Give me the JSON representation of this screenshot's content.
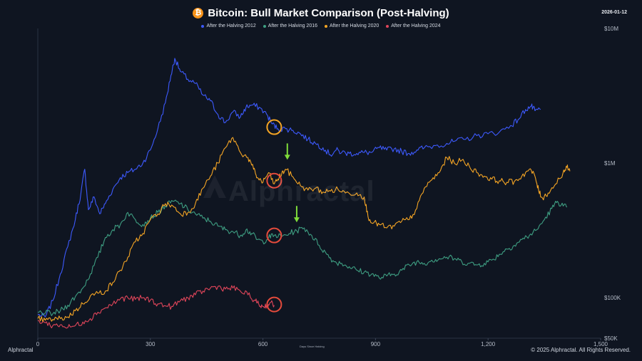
{
  "header": {
    "title": "Bitcoin: Bull Market Comparison (Post-Halving)",
    "date": "2026-01-12",
    "icon": "bitcoin-icon"
  },
  "footer": {
    "brand": "Alphractal",
    "copyright": "© 2025 Alphractal. All Rights Reserved.",
    "watermark": "Alphractal"
  },
  "chart_data": {
    "type": "line",
    "title": "Bitcoin: Bull Market Comparison (Post-Halving)",
    "xlabel": "Days Since Halving",
    "ylabel": "",
    "y_scale": "log",
    "xlim": [
      0,
      1500
    ],
    "ylim": [
      50000,
      10000000
    ],
    "x_ticks": [
      {
        "value": 0,
        "label": "0"
      },
      {
        "value": 300,
        "label": "300"
      },
      {
        "value": 600,
        "label": "600"
      },
      {
        "value": 900,
        "label": "900"
      },
      {
        "value": 1200,
        "label": "1,200"
      },
      {
        "value": 1500,
        "label": "1,500"
      }
    ],
    "y_ticks": [
      {
        "value": 10000000,
        "label": "$10M"
      },
      {
        "value": 1000000,
        "label": "$1M"
      },
      {
        "value": 100000,
        "label": "$100K"
      },
      {
        "value": 50000,
        "label": "$50K"
      }
    ],
    "grid": false,
    "legend_position": "top-center",
    "series": [
      {
        "name": "After the Halving 2012",
        "color": "#3d5afe",
        "points": [
          [
            0,
            75000
          ],
          [
            20,
            72000
          ],
          [
            40,
            95000
          ],
          [
            60,
            150000
          ],
          [
            80,
            240000
          ],
          [
            100,
            380000
          ],
          [
            115,
            600000
          ],
          [
            125,
            900000
          ],
          [
            135,
            450000
          ],
          [
            150,
            560000
          ],
          [
            165,
            420000
          ],
          [
            180,
            500000
          ],
          [
            200,
            640000
          ],
          [
            220,
            780000
          ],
          [
            240,
            850000
          ],
          [
            260,
            900000
          ],
          [
            280,
            1000000
          ],
          [
            300,
            1250000
          ],
          [
            320,
            1800000
          ],
          [
            340,
            2800000
          ],
          [
            355,
            4500000
          ],
          [
            365,
            6000000
          ],
          [
            380,
            4800000
          ],
          [
            400,
            4200000
          ],
          [
            420,
            3900000
          ],
          [
            440,
            3200000
          ],
          [
            460,
            2900000
          ],
          [
            480,
            2300000
          ],
          [
            500,
            2000000
          ],
          [
            520,
            2400000
          ],
          [
            540,
            2200000
          ],
          [
            555,
            2600000
          ],
          [
            570,
            2700000
          ],
          [
            590,
            2600000
          ],
          [
            610,
            2300000
          ],
          [
            625,
            1950000
          ],
          [
            640,
            1800000
          ],
          [
            660,
            1800000
          ],
          [
            680,
            1750000
          ],
          [
            700,
            1650000
          ],
          [
            720,
            1500000
          ],
          [
            740,
            1400000
          ],
          [
            760,
            1300000
          ],
          [
            780,
            1150000
          ],
          [
            795,
            1250000
          ],
          [
            810,
            1200000
          ],
          [
            830,
            1180000
          ],
          [
            850,
            1180000
          ],
          [
            870,
            1200000
          ],
          [
            890,
            1200000
          ],
          [
            910,
            1300000
          ],
          [
            930,
            1250000
          ],
          [
            950,
            1280000
          ],
          [
            970,
            1220000
          ],
          [
            990,
            1180000
          ],
          [
            1010,
            1250000
          ],
          [
            1030,
            1300000
          ],
          [
            1060,
            1350000
          ],
          [
            1090,
            1400000
          ],
          [
            1110,
            1450000
          ],
          [
            1140,
            1500000
          ],
          [
            1170,
            1600000
          ],
          [
            1200,
            1650000
          ],
          [
            1230,
            1700000
          ],
          [
            1260,
            1900000
          ],
          [
            1280,
            2100000
          ],
          [
            1300,
            2500000
          ],
          [
            1315,
            2650000
          ],
          [
            1325,
            2450000
          ],
          [
            1340,
            2500000
          ]
        ]
      },
      {
        "name": "After the Halving 2016",
        "color": "#3e9e82",
        "points": [
          [
            0,
            78000
          ],
          [
            20,
            77000
          ],
          [
            40,
            76000
          ],
          [
            60,
            80000
          ],
          [
            80,
            88000
          ],
          [
            100,
            102000
          ],
          [
            120,
            118000
          ],
          [
            140,
            150000
          ],
          [
            160,
            200000
          ],
          [
            180,
            280000
          ],
          [
            200,
            320000
          ],
          [
            220,
            350000
          ],
          [
            240,
            430000
          ],
          [
            260,
            380000
          ],
          [
            280,
            350000
          ],
          [
            300,
            390000
          ],
          [
            320,
            430000
          ],
          [
            340,
            480000
          ],
          [
            360,
            520000
          ],
          [
            380,
            500000
          ],
          [
            400,
            450000
          ],
          [
            420,
            420000
          ],
          [
            440,
            390000
          ],
          [
            460,
            370000
          ],
          [
            480,
            340000
          ],
          [
            500,
            320000
          ],
          [
            520,
            310000
          ],
          [
            540,
            290000
          ],
          [
            555,
            320000
          ],
          [
            570,
            300000
          ],
          [
            585,
            270000
          ],
          [
            600,
            260000
          ],
          [
            615,
            280000
          ],
          [
            630,
            290000
          ],
          [
            650,
            285000
          ],
          [
            670,
            300000
          ],
          [
            690,
            315000
          ],
          [
            710,
            330000
          ],
          [
            730,
            290000
          ],
          [
            750,
            245000
          ],
          [
            770,
            210000
          ],
          [
            790,
            185000
          ],
          [
            810,
            180000
          ],
          [
            830,
            170000
          ],
          [
            850,
            160000
          ],
          [
            870,
            155000
          ],
          [
            890,
            150000
          ],
          [
            910,
            140000
          ],
          [
            930,
            145000
          ],
          [
            950,
            150000
          ],
          [
            970,
            160000
          ],
          [
            990,
            175000
          ],
          [
            1010,
            185000
          ],
          [
            1030,
            180000
          ],
          [
            1050,
            190000
          ],
          [
            1070,
            195000
          ],
          [
            1090,
            200000
          ],
          [
            1110,
            195000
          ],
          [
            1130,
            185000
          ],
          [
            1150,
            180000
          ],
          [
            1170,
            175000
          ],
          [
            1190,
            180000
          ],
          [
            1210,
            190000
          ],
          [
            1230,
            210000
          ],
          [
            1250,
            230000
          ],
          [
            1270,
            245000
          ],
          [
            1290,
            270000
          ],
          [
            1310,
            290000
          ],
          [
            1330,
            320000
          ],
          [
            1350,
            380000
          ],
          [
            1370,
            460000
          ],
          [
            1385,
            520000
          ],
          [
            1400,
            480000
          ],
          [
            1410,
            470000
          ]
        ]
      },
      {
        "name": "After the Halving 2020",
        "color": "#f5a524",
        "points": [
          [
            0,
            70000
          ],
          [
            20,
            68000
          ],
          [
            40,
            69000
          ],
          [
            60,
            70000
          ],
          [
            80,
            72000
          ],
          [
            100,
            80000
          ],
          [
            120,
            90000
          ],
          [
            140,
            103000
          ],
          [
            160,
            108000
          ],
          [
            180,
            112000
          ],
          [
            200,
            130000
          ],
          [
            220,
            160000
          ],
          [
            240,
            200000
          ],
          [
            260,
            260000
          ],
          [
            280,
            300000
          ],
          [
            300,
            380000
          ],
          [
            320,
            420000
          ],
          [
            340,
            500000
          ],
          [
            360,
            480000
          ],
          [
            380,
            420000
          ],
          [
            400,
            430000
          ],
          [
            420,
            500000
          ],
          [
            440,
            650000
          ],
          [
            460,
            800000
          ],
          [
            480,
            1000000
          ],
          [
            500,
            1300000
          ],
          [
            520,
            1550000
          ],
          [
            540,
            1200000
          ],
          [
            560,
            1100000
          ],
          [
            575,
            900000
          ],
          [
            585,
            780000
          ],
          [
            600,
            720000
          ],
          [
            615,
            850000
          ],
          [
            630,
            700000
          ],
          [
            640,
            760000
          ],
          [
            650,
            830000
          ],
          [
            660,
            900000
          ],
          [
            680,
            790000
          ],
          [
            700,
            680000
          ],
          [
            720,
            630000
          ],
          [
            740,
            650000
          ],
          [
            760,
            610000
          ],
          [
            780,
            620000
          ],
          [
            800,
            640000
          ],
          [
            820,
            600000
          ],
          [
            850,
            600000
          ],
          [
            870,
            560000
          ],
          [
            880,
            400000
          ],
          [
            895,
            360000
          ],
          [
            910,
            350000
          ],
          [
            930,
            330000
          ],
          [
            950,
            340000
          ],
          [
            970,
            370000
          ],
          [
            990,
            380000
          ],
          [
            1010,
            460000
          ],
          [
            1030,
            650000
          ],
          [
            1050,
            750000
          ],
          [
            1070,
            850000
          ],
          [
            1090,
            1100000
          ],
          [
            1110,
            1000000
          ],
          [
            1130,
            1050000
          ],
          [
            1150,
            950000
          ],
          [
            1170,
            850000
          ],
          [
            1190,
            800000
          ],
          [
            1210,
            760000
          ],
          [
            1230,
            740000
          ],
          [
            1250,
            720000
          ],
          [
            1270,
            730000
          ],
          [
            1290,
            800000
          ],
          [
            1310,
            900000
          ],
          [
            1325,
            800000
          ],
          [
            1335,
            620000
          ],
          [
            1345,
            550000
          ],
          [
            1360,
            600000
          ],
          [
            1380,
            700000
          ],
          [
            1400,
            850000
          ],
          [
            1410,
            930000
          ],
          [
            1418,
            870000
          ]
        ]
      },
      {
        "name": "After the Halving 2024",
        "color": "#e0455a",
        "points": [
          [
            0,
            68000
          ],
          [
            20,
            65000
          ],
          [
            40,
            62000
          ],
          [
            60,
            63000
          ],
          [
            80,
            60000
          ],
          [
            100,
            62000
          ],
          [
            120,
            66000
          ],
          [
            140,
            70000
          ],
          [
            160,
            78000
          ],
          [
            180,
            84000
          ],
          [
            200,
            90000
          ],
          [
            220,
            98000
          ],
          [
            240,
            100000
          ],
          [
            260,
            97000
          ],
          [
            280,
            100000
          ],
          [
            300,
            96000
          ],
          [
            320,
            90000
          ],
          [
            340,
            87000
          ],
          [
            360,
            86000
          ],
          [
            380,
            95000
          ],
          [
            400,
            100000
          ],
          [
            420,
            105000
          ],
          [
            440,
            112000
          ],
          [
            460,
            118000
          ],
          [
            480,
            121000
          ],
          [
            500,
            116000
          ],
          [
            520,
            118000
          ],
          [
            540,
            112000
          ],
          [
            560,
            105000
          ],
          [
            580,
            95000
          ],
          [
            590,
            88000
          ],
          [
            600,
            86000
          ],
          [
            610,
            88000
          ],
          [
            620,
            92000
          ],
          [
            630,
            88000
          ]
        ]
      }
    ],
    "annotations": [
      {
        "type": "circle",
        "color": "#f5a524",
        "x": 630,
        "y": 1850000
      },
      {
        "type": "circle",
        "color": "#e54b3c",
        "x": 630,
        "y": 740000
      },
      {
        "type": "circle",
        "color": "#e54b3c",
        "x": 630,
        "y": 290000
      },
      {
        "type": "circle",
        "color": "#e54b3c",
        "x": 630,
        "y": 89000
      },
      {
        "type": "arrow",
        "color": "#7fdc3a",
        "x": 665,
        "y": 1020000
      },
      {
        "type": "arrow",
        "color": "#7fdc3a",
        "x": 690,
        "y": 350000
      }
    ]
  }
}
